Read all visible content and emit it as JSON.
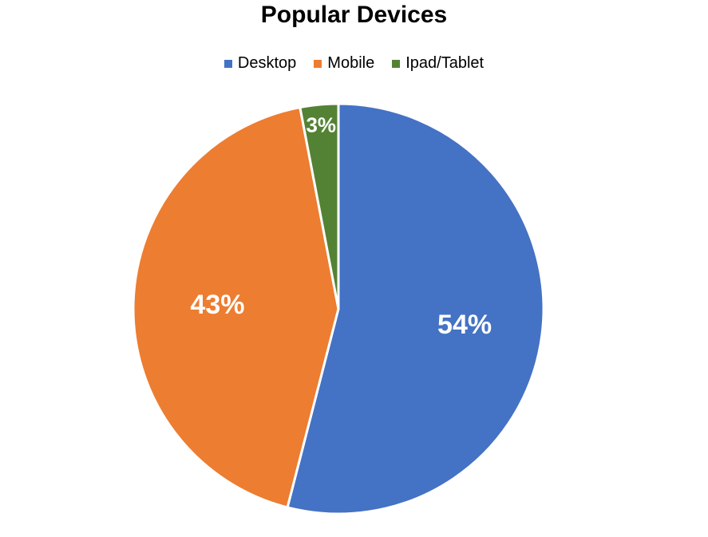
{
  "chart_data": {
    "type": "pie",
    "title": "Popular Devices",
    "legend_position": "top",
    "categories": [
      "Desktop",
      "Mobile",
      "Ipad/Tablet"
    ],
    "values": [
      54,
      43,
      3
    ],
    "labels": [
      "54%",
      "43%",
      "3%"
    ],
    "colors": [
      "#4472C4",
      "#ED7D31",
      "#548235"
    ]
  }
}
